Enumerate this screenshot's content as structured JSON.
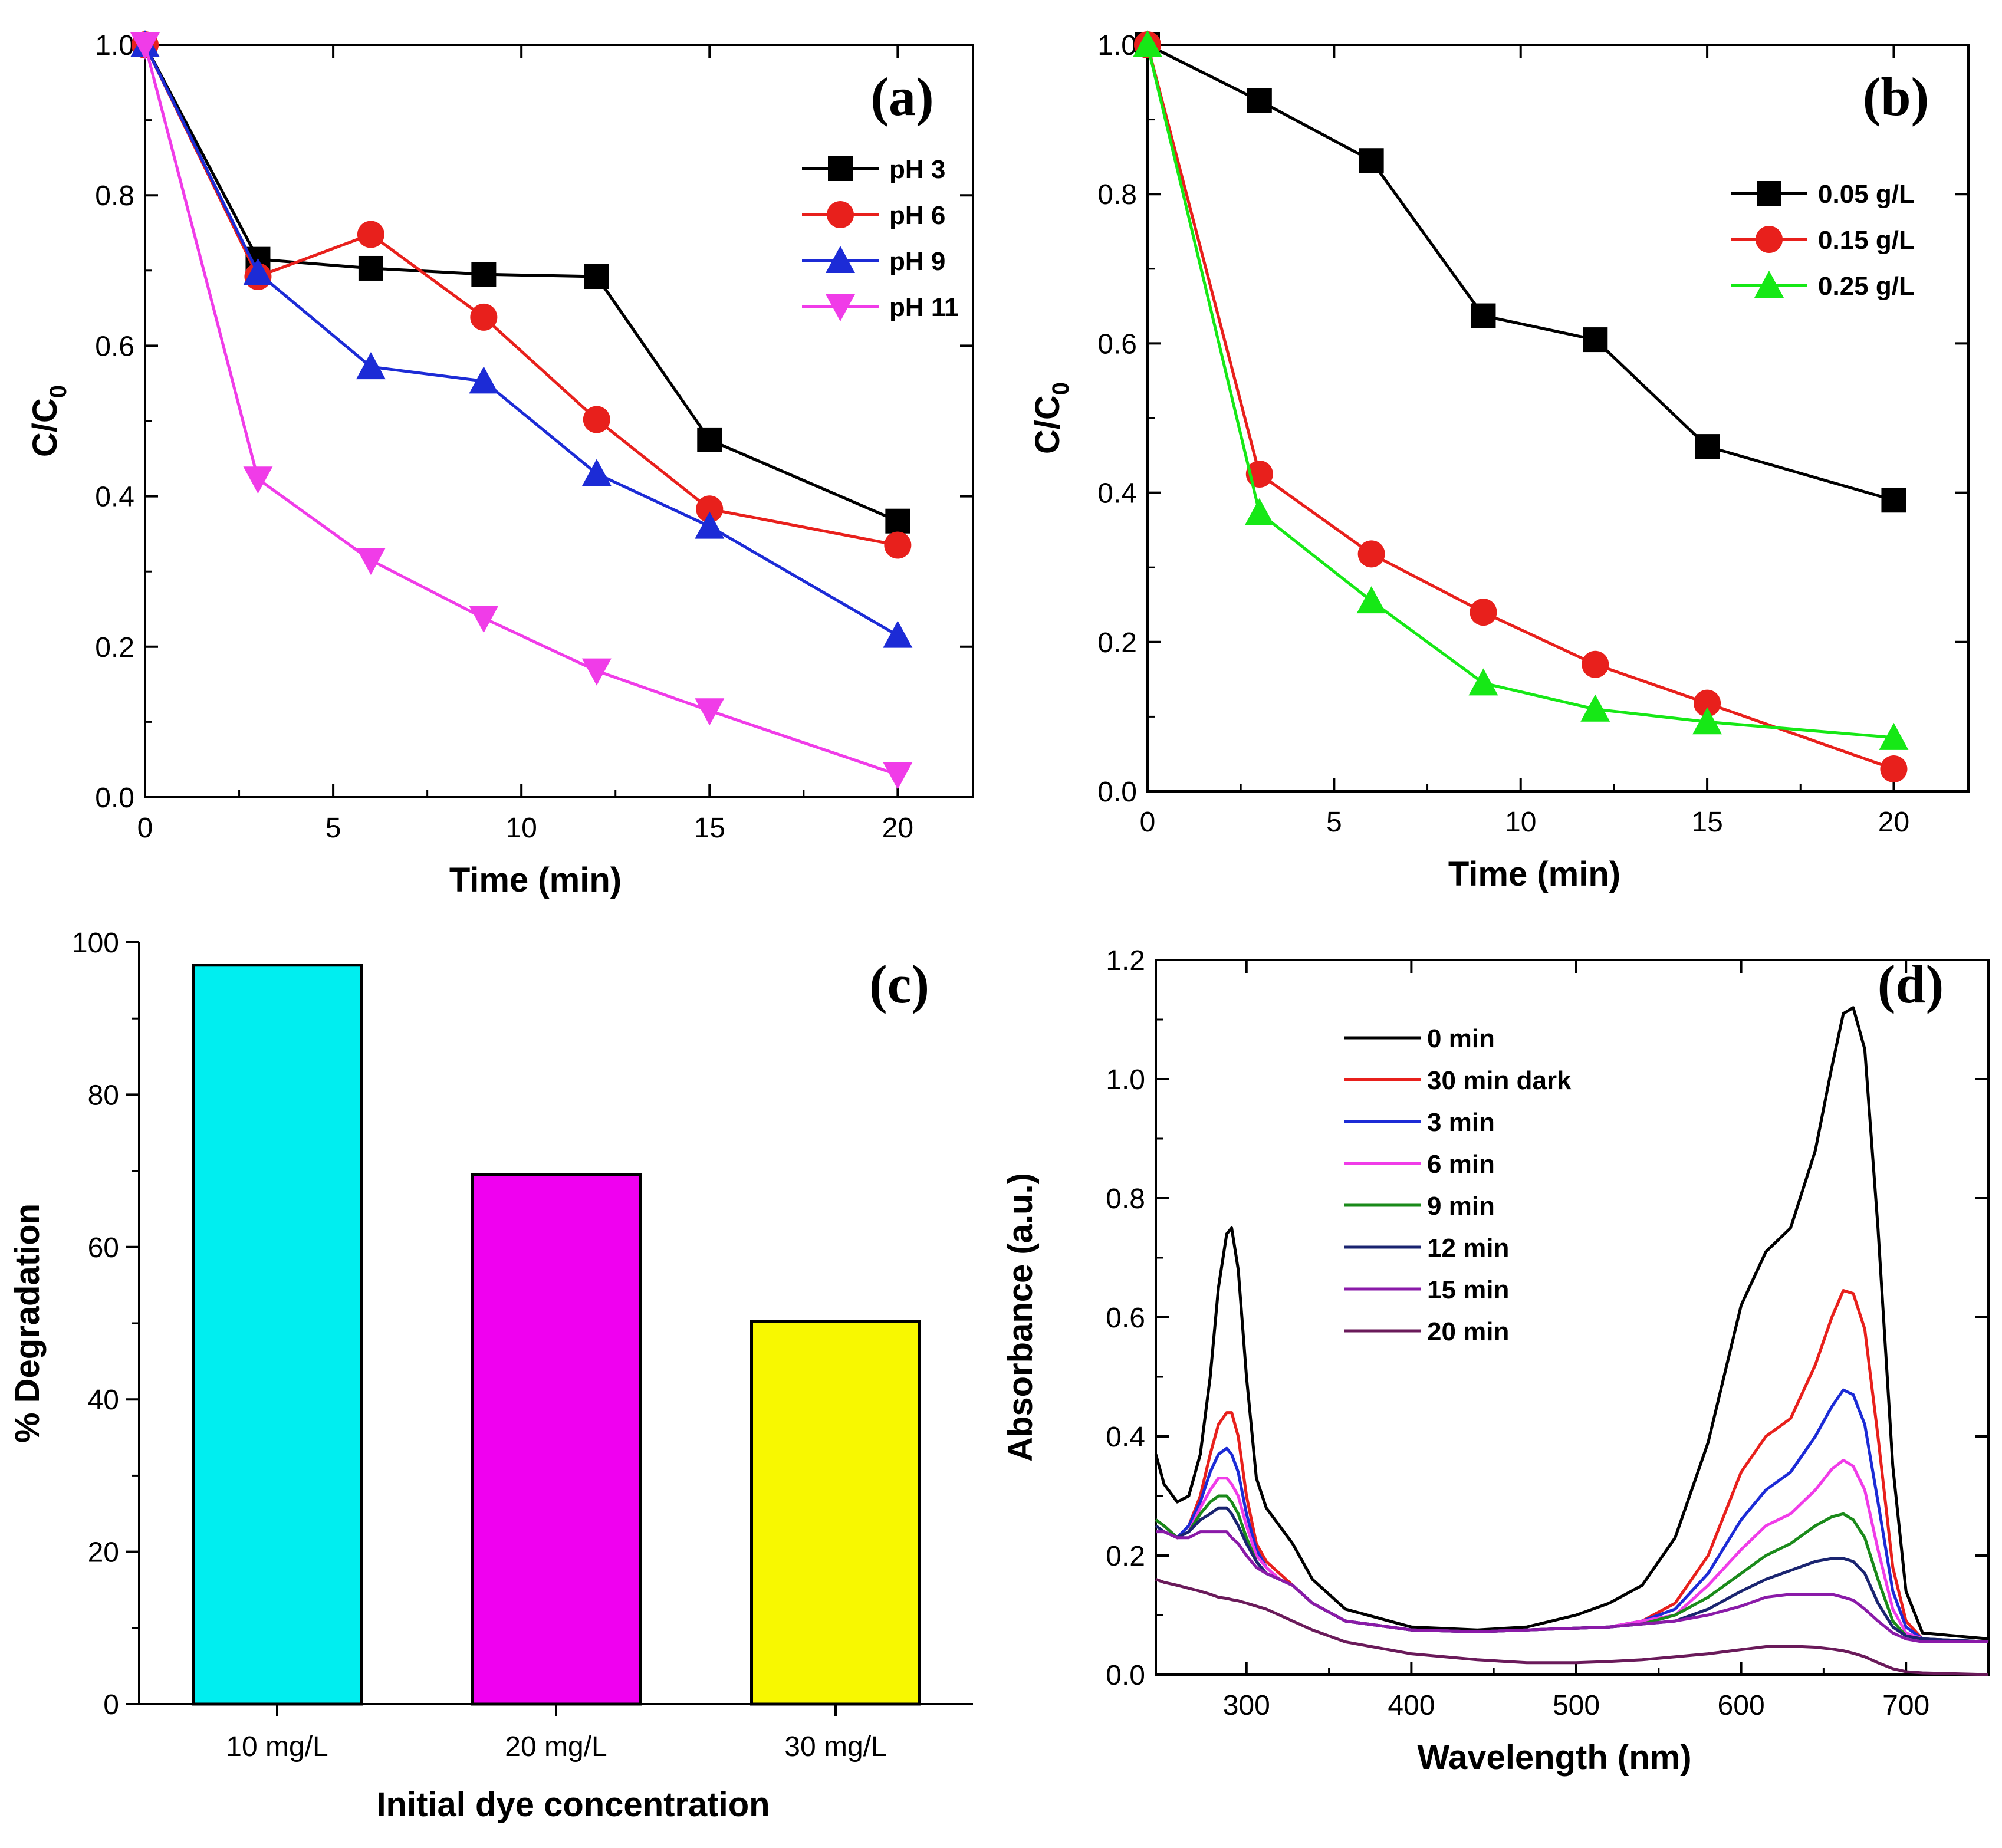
{
  "chart_data": [
    {
      "id": "a",
      "type": "line",
      "panel_label": "(a)",
      "xlabel": "Time (min)",
      "ylabel": "C/C",
      "ylabel_sub": "0",
      "xlim": [
        0,
        22
      ],
      "ylim": [
        0,
        1
      ],
      "xticks": [
        0,
        5,
        10,
        15,
        20
      ],
      "yticks": [
        0.0,
        0.2,
        0.4,
        0.6,
        0.8,
        1.0
      ],
      "ytick_labels": [
        "0.0",
        "0.2",
        "0.4",
        "0.6",
        "0.8",
        "1.0"
      ],
      "legend_position": "top-right",
      "series": [
        {
          "name": "pH 3",
          "color": "#000000",
          "marker": "square",
          "x": [
            0,
            3,
            6,
            9,
            12,
            15,
            20
          ],
          "y": [
            1.0,
            0.715,
            0.703,
            0.695,
            0.692,
            0.475,
            0.367
          ]
        },
        {
          "name": "pH 6",
          "color": "#e8201c",
          "marker": "circle",
          "x": [
            0,
            3,
            6,
            9,
            12,
            15,
            20
          ],
          "y": [
            1.0,
            0.692,
            0.748,
            0.638,
            0.502,
            0.383,
            0.335
          ]
        },
        {
          "name": "pH 9",
          "color": "#1c2bd6",
          "marker": "triangle-up",
          "x": [
            0,
            3,
            6,
            9,
            12,
            15,
            20
          ],
          "y": [
            1.0,
            0.697,
            0.572,
            0.553,
            0.43,
            0.36,
            0.215
          ]
        },
        {
          "name": "pH 11",
          "color": "#f03ce8",
          "marker": "triangle-down",
          "x": [
            0,
            3,
            6,
            9,
            12,
            15,
            20
          ],
          "y": [
            1.0,
            0.423,
            0.315,
            0.238,
            0.168,
            0.115,
            0.03
          ]
        }
      ]
    },
    {
      "id": "b",
      "type": "line",
      "panel_label": "(b)",
      "xlabel": "Time (min)",
      "ylabel": "C/C",
      "ylabel_sub": "0",
      "xlim": [
        0,
        22
      ],
      "ylim": [
        0,
        1
      ],
      "xticks": [
        0,
        5,
        10,
        15,
        20
      ],
      "yticks": [
        0.0,
        0.2,
        0.4,
        0.6,
        0.8,
        1.0
      ],
      "ytick_labels": [
        "0.0",
        "0.2",
        "0.4",
        "0.6",
        "0.8",
        "1.0"
      ],
      "legend_position": "top-right",
      "series": [
        {
          "name": "0.05 g/L",
          "color": "#000000",
          "marker": "square",
          "x": [
            0,
            3,
            6,
            9,
            12,
            15,
            20
          ],
          "y": [
            1.0,
            0.925,
            0.845,
            0.637,
            0.605,
            0.462,
            0.39
          ]
        },
        {
          "name": "0.15 g/L",
          "color": "#e8201c",
          "marker": "circle",
          "x": [
            0,
            3,
            6,
            9,
            12,
            15,
            20
          ],
          "y": [
            1.0,
            0.425,
            0.318,
            0.24,
            0.17,
            0.118,
            0.03
          ]
        },
        {
          "name": "0.25 g/L",
          "color": "#16e816",
          "marker": "triangle-up",
          "x": [
            0,
            3,
            6,
            9,
            12,
            15,
            20
          ],
          "y": [
            1.0,
            0.373,
            0.255,
            0.145,
            0.11,
            0.093,
            0.072
          ]
        }
      ]
    },
    {
      "id": "c",
      "type": "bar",
      "panel_label": "(c)",
      "xlabel": "Initial dye concentration",
      "ylabel": "% Degradation",
      "ylim": [
        0,
        100
      ],
      "yticks": [
        0,
        20,
        40,
        60,
        80,
        100
      ],
      "ytick_labels": [
        "0",
        "20",
        "40",
        "60",
        "80",
        "100"
      ],
      "categories": [
        "10 mg/L",
        "20 mg/L",
        "30 mg/L"
      ],
      "values": [
        97,
        69.5,
        50.2
      ],
      "colors": [
        "#00eef0",
        "#f000f0",
        "#f8f800"
      ]
    },
    {
      "id": "d",
      "type": "line",
      "panel_label": "(d)",
      "xlabel": "Wavelength (nm)",
      "ylabel": "Absorbance (a.u.)",
      "xlim": [
        245,
        750
      ],
      "ylim": [
        0,
        1.2
      ],
      "xticks": [
        300,
        400,
        500,
        600,
        700
      ],
      "yticks": [
        0.0,
        0.2,
        0.4,
        0.6,
        0.8,
        1.0,
        1.2
      ],
      "ytick_labels": [
        "0.0",
        "0.2",
        "0.4",
        "0.6",
        "0.8",
        "1.0",
        "1.2"
      ],
      "legend_position": "top-left",
      "series": [
        {
          "name": "0 min",
          "color": "#000000",
          "x": [
            245,
            250,
            258,
            265,
            272,
            278,
            283,
            288,
            291,
            295,
            300,
            306,
            312,
            320,
            328,
            340,
            360,
            400,
            440,
            470,
            500,
            520,
            540,
            560,
            580,
            600,
            615,
            630,
            645,
            655,
            662,
            668,
            675,
            683,
            692,
            700,
            710,
            750
          ],
          "y": [
            0.37,
            0.32,
            0.29,
            0.3,
            0.37,
            0.5,
            0.65,
            0.74,
            0.75,
            0.68,
            0.5,
            0.33,
            0.28,
            0.25,
            0.22,
            0.16,
            0.11,
            0.08,
            0.075,
            0.08,
            0.1,
            0.12,
            0.15,
            0.23,
            0.39,
            0.62,
            0.71,
            0.75,
            0.88,
            1.02,
            1.11,
            1.12,
            1.05,
            0.75,
            0.35,
            0.14,
            0.07,
            0.06
          ]
        },
        {
          "name": "30 min dark",
          "color": "#e8201c",
          "x": [
            245,
            250,
            258,
            265,
            272,
            278,
            283,
            288,
            291,
            295,
            300,
            306,
            312,
            320,
            328,
            340,
            360,
            400,
            440,
            470,
            500,
            520,
            540,
            560,
            580,
            600,
            615,
            630,
            645,
            655,
            662,
            668,
            675,
            683,
            692,
            700,
            710,
            750
          ],
          "y": [
            0.26,
            0.25,
            0.23,
            0.25,
            0.3,
            0.37,
            0.42,
            0.44,
            0.44,
            0.4,
            0.3,
            0.22,
            0.19,
            0.17,
            0.15,
            0.12,
            0.09,
            0.075,
            0.072,
            0.075,
            0.078,
            0.08,
            0.09,
            0.12,
            0.2,
            0.34,
            0.4,
            0.43,
            0.52,
            0.6,
            0.645,
            0.64,
            0.58,
            0.4,
            0.18,
            0.09,
            0.06,
            0.055
          ]
        },
        {
          "name": "3 min",
          "color": "#1c2bd6",
          "x": [
            245,
            250,
            258,
            265,
            272,
            278,
            283,
            288,
            291,
            295,
            300,
            306,
            312,
            320,
            328,
            340,
            360,
            400,
            440,
            470,
            500,
            520,
            540,
            560,
            580,
            600,
            615,
            630,
            645,
            655,
            662,
            668,
            675,
            683,
            692,
            700,
            710,
            750
          ],
          "y": [
            0.26,
            0.25,
            0.23,
            0.25,
            0.29,
            0.34,
            0.37,
            0.38,
            0.37,
            0.34,
            0.27,
            0.21,
            0.18,
            0.16,
            0.15,
            0.12,
            0.09,
            0.075,
            0.072,
            0.075,
            0.078,
            0.08,
            0.09,
            0.11,
            0.17,
            0.26,
            0.31,
            0.34,
            0.4,
            0.45,
            0.478,
            0.47,
            0.42,
            0.29,
            0.14,
            0.08,
            0.06,
            0.055
          ]
        },
        {
          "name": "6 min",
          "color": "#f03ce8",
          "x": [
            245,
            250,
            258,
            265,
            272,
            278,
            283,
            288,
            291,
            295,
            300,
            306,
            312,
            320,
            328,
            340,
            360,
            400,
            440,
            470,
            500,
            520,
            540,
            560,
            580,
            600,
            615,
            630,
            645,
            655,
            662,
            668,
            675,
            683,
            692,
            700,
            710,
            750
          ],
          "y": [
            0.26,
            0.25,
            0.23,
            0.24,
            0.28,
            0.31,
            0.33,
            0.33,
            0.32,
            0.3,
            0.25,
            0.2,
            0.18,
            0.16,
            0.15,
            0.12,
            0.09,
            0.075,
            0.072,
            0.075,
            0.078,
            0.08,
            0.09,
            0.1,
            0.15,
            0.21,
            0.25,
            0.27,
            0.31,
            0.345,
            0.36,
            0.35,
            0.31,
            0.21,
            0.11,
            0.07,
            0.06,
            0.055
          ]
        },
        {
          "name": "9 min",
          "color": "#1a8a1a",
          "x": [
            245,
            250,
            258,
            265,
            272,
            278,
            283,
            288,
            291,
            295,
            300,
            306,
            312,
            320,
            328,
            340,
            360,
            400,
            440,
            470,
            500,
            520,
            540,
            560,
            580,
            600,
            615,
            630,
            645,
            655,
            662,
            668,
            675,
            683,
            692,
            700,
            710,
            750
          ],
          "y": [
            0.26,
            0.25,
            0.23,
            0.24,
            0.27,
            0.29,
            0.3,
            0.3,
            0.29,
            0.27,
            0.23,
            0.19,
            0.17,
            0.16,
            0.15,
            0.12,
            0.09,
            0.075,
            0.072,
            0.075,
            0.078,
            0.08,
            0.085,
            0.1,
            0.13,
            0.17,
            0.2,
            0.22,
            0.25,
            0.265,
            0.27,
            0.26,
            0.23,
            0.16,
            0.09,
            0.065,
            0.06,
            0.055
          ]
        },
        {
          "name": "12 min",
          "color": "#1a2470",
          "x": [
            245,
            250,
            258,
            265,
            272,
            278,
            283,
            288,
            291,
            295,
            300,
            306,
            312,
            320,
            328,
            340,
            360,
            400,
            440,
            470,
            500,
            520,
            540,
            560,
            580,
            600,
            615,
            630,
            645,
            655,
            662,
            668,
            675,
            683,
            692,
            700,
            710,
            750
          ],
          "y": [
            0.25,
            0.24,
            0.23,
            0.24,
            0.26,
            0.27,
            0.28,
            0.28,
            0.27,
            0.25,
            0.22,
            0.19,
            0.17,
            0.16,
            0.15,
            0.12,
            0.09,
            0.075,
            0.072,
            0.075,
            0.078,
            0.08,
            0.085,
            0.09,
            0.11,
            0.14,
            0.16,
            0.175,
            0.19,
            0.195,
            0.195,
            0.19,
            0.17,
            0.12,
            0.08,
            0.065,
            0.06,
            0.055
          ]
        },
        {
          "name": "15 min",
          "color": "#8a1aa8",
          "x": [
            245,
            250,
            258,
            265,
            272,
            278,
            283,
            288,
            291,
            295,
            300,
            306,
            312,
            320,
            328,
            340,
            360,
            400,
            440,
            470,
            500,
            520,
            540,
            560,
            580,
            600,
            615,
            630,
            645,
            655,
            662,
            668,
            675,
            683,
            692,
            700,
            710,
            750
          ],
          "y": [
            0.24,
            0.24,
            0.23,
            0.23,
            0.24,
            0.24,
            0.24,
            0.24,
            0.23,
            0.22,
            0.2,
            0.18,
            0.17,
            0.16,
            0.15,
            0.12,
            0.09,
            0.075,
            0.072,
            0.075,
            0.078,
            0.08,
            0.085,
            0.09,
            0.1,
            0.115,
            0.13,
            0.135,
            0.135,
            0.135,
            0.13,
            0.125,
            0.11,
            0.09,
            0.07,
            0.06,
            0.055,
            0.055
          ]
        },
        {
          "name": "20 min",
          "color": "#6a1a5a",
          "x": [
            245,
            250,
            258,
            265,
            272,
            278,
            283,
            288,
            291,
            295,
            300,
            306,
            312,
            320,
            328,
            340,
            360,
            400,
            440,
            470,
            500,
            520,
            540,
            560,
            580,
            600,
            615,
            630,
            645,
            655,
            662,
            668,
            675,
            683,
            692,
            700,
            710,
            750
          ],
          "y": [
            0.16,
            0.155,
            0.15,
            0.145,
            0.14,
            0.135,
            0.13,
            0.128,
            0.126,
            0.124,
            0.12,
            0.115,
            0.11,
            0.1,
            0.09,
            0.075,
            0.055,
            0.035,
            0.025,
            0.02,
            0.02,
            0.022,
            0.025,
            0.03,
            0.035,
            0.042,
            0.047,
            0.048,
            0.046,
            0.043,
            0.04,
            0.036,
            0.03,
            0.02,
            0.01,
            0.005,
            0.003,
            0.0
          ]
        }
      ]
    }
  ]
}
